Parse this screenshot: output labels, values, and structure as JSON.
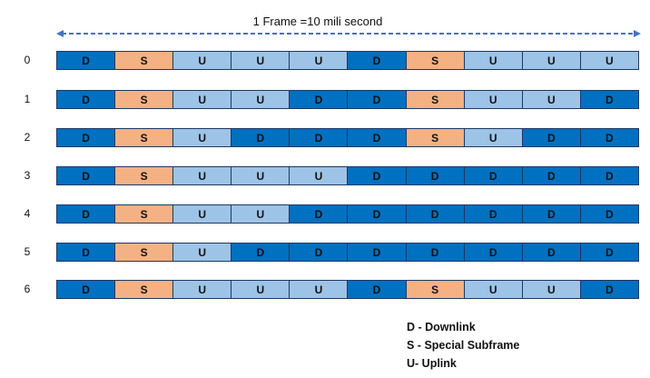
{
  "title": "1 Frame =10 mili second",
  "colors": {
    "D": "#0070c0",
    "S": "#f4b183",
    "U": "#9dc3e6",
    "border": "#1f3864",
    "arrow": "#4472c4"
  },
  "configurations": [
    {
      "label": "0",
      "subframes": [
        "D",
        "S",
        "U",
        "U",
        "U",
        "D",
        "S",
        "U",
        "U",
        "U"
      ]
    },
    {
      "label": "1",
      "subframes": [
        "D",
        "S",
        "U",
        "U",
        "D",
        "D",
        "S",
        "U",
        "U",
        "D"
      ]
    },
    {
      "label": "2",
      "subframes": [
        "D",
        "S",
        "U",
        "D",
        "D",
        "D",
        "S",
        "U",
        "D",
        "D"
      ]
    },
    {
      "label": "3",
      "subframes": [
        "D",
        "S",
        "U",
        "U",
        "U",
        "D",
        "D",
        "D",
        "D",
        "D"
      ]
    },
    {
      "label": "4",
      "subframes": [
        "D",
        "S",
        "U",
        "U",
        "D",
        "D",
        "D",
        "D",
        "D",
        "D"
      ]
    },
    {
      "label": "5",
      "subframes": [
        "D",
        "S",
        "U",
        "D",
        "D",
        "D",
        "D",
        "D",
        "D",
        "D"
      ]
    },
    {
      "label": "6",
      "subframes": [
        "D",
        "S",
        "U",
        "U",
        "U",
        "D",
        "S",
        "U",
        "U",
        "D"
      ]
    }
  ],
  "legend": [
    {
      "text": "D - Downlink"
    },
    {
      "text": "S - Special Subframe"
    },
    {
      "text": "U- Uplink"
    }
  ]
}
